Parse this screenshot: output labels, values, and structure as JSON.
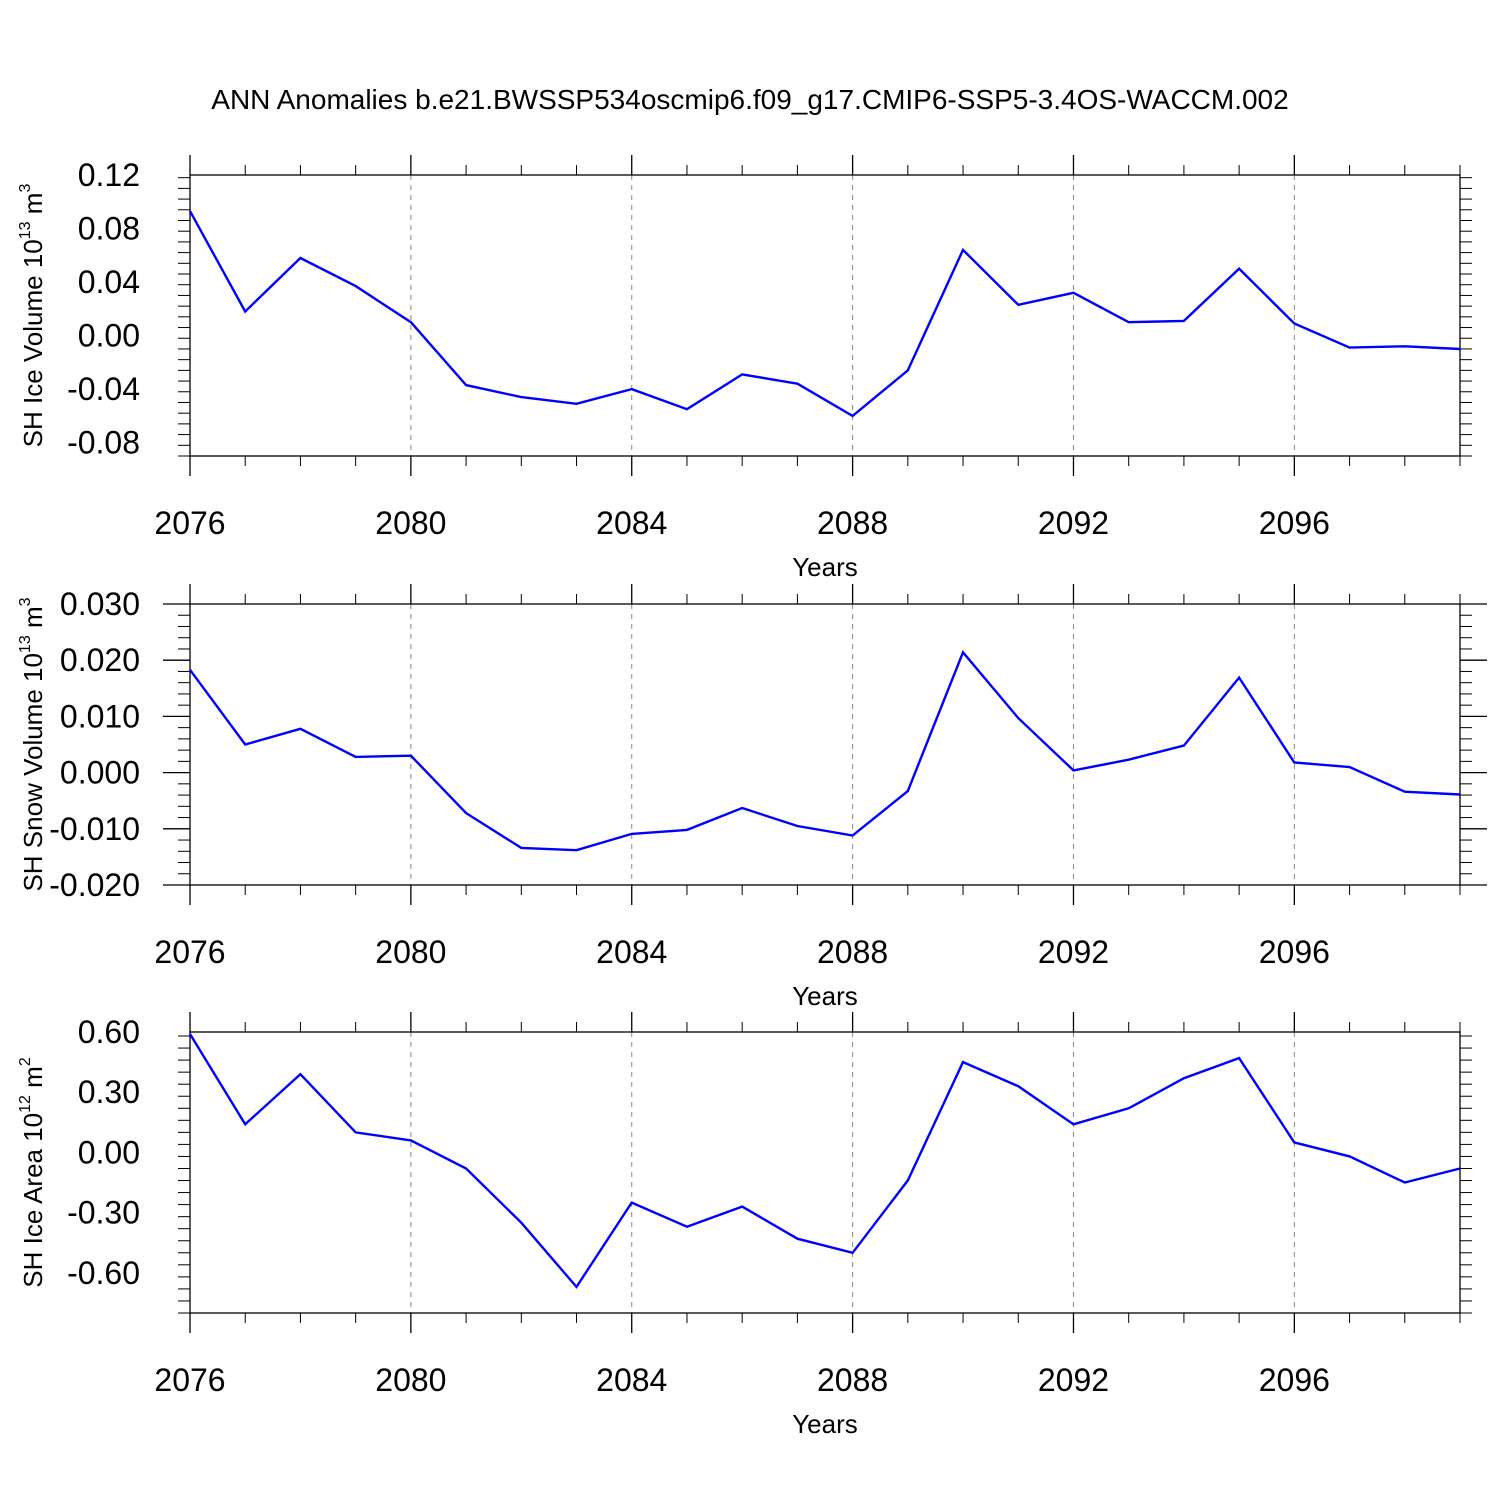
{
  "title": "ANN Anomalies b.e21.BWSSP534oscmip6.f09_g17.CMIP6-SSP5-3.4OS-WACCM.002",
  "style": {
    "line_color": "#0000ff",
    "grid": "vertical dashed at major x ticks"
  },
  "chart_data": [
    {
      "type": "line",
      "ylabel": "SH Ice Volume 10",
      "ylabel_exp": "13",
      "ylabel_unit": " m",
      "ylabel_unit_exp": "3",
      "xlabel": "Years",
      "xlim": [
        2076,
        2099
      ],
      "ylim": [
        -0.09,
        0.12
      ],
      "xticks": [
        2076,
        2080,
        2084,
        2088,
        2092,
        2096
      ],
      "xtick_labels": [
        "2076",
        "2080",
        "2084",
        "2088",
        "2092",
        "2096"
      ],
      "yticks": [
        0.12,
        0.08,
        0.04,
        0.0,
        -0.04,
        -0.08
      ],
      "ytick_labels": [
        "0.12",
        "0.08",
        "0.04",
        "0.00",
        "-0.04",
        "-0.08"
      ],
      "series": [
        {
          "x": [
            2076,
            2077,
            2078,
            2079,
            2080,
            2081,
            2082,
            2083,
            2084,
            2085,
            2086,
            2087,
            2088,
            2089,
            2090,
            2091,
            2092,
            2093,
            2094,
            2095,
            2096,
            2097,
            2098,
            2099
          ],
          "values": [
            0.093,
            0.018,
            0.058,
            0.037,
            0.01,
            -0.037,
            -0.046,
            -0.051,
            -0.04,
            -0.055,
            -0.029,
            -0.036,
            -0.06,
            -0.026,
            0.064,
            0.023,
            0.032,
            0.01,
            0.011,
            0.05,
            0.009,
            -0.009,
            -0.008,
            -0.01
          ]
        }
      ]
    },
    {
      "type": "line",
      "ylabel": "SH Snow Volume 10",
      "ylabel_exp": "13",
      "ylabel_unit": " m",
      "ylabel_unit_exp": "3",
      "xlabel": "Years",
      "xlim": [
        2076,
        2099
      ],
      "ylim": [
        -0.02,
        0.03
      ],
      "xticks": [
        2076,
        2080,
        2084,
        2088,
        2092,
        2096
      ],
      "xtick_labels": [
        "2076",
        "2080",
        "2084",
        "2088",
        "2092",
        "2096"
      ],
      "yticks": [
        0.03,
        0.02,
        0.01,
        0.0,
        -0.01,
        -0.02
      ],
      "ytick_labels": [
        "0.030",
        "0.020",
        "0.010",
        "0.000",
        "-0.010",
        "-0.020"
      ],
      "series": [
        {
          "x": [
            2076,
            2077,
            2078,
            2079,
            2080,
            2081,
            2082,
            2083,
            2084,
            2085,
            2086,
            2087,
            2088,
            2089,
            2090,
            2091,
            2092,
            2093,
            2094,
            2095,
            2096,
            2097,
            2098,
            2099
          ],
          "values": [
            0.0183,
            0.005,
            0.0078,
            0.0028,
            0.003,
            -0.0072,
            -0.0134,
            -0.0138,
            -0.0109,
            -0.0102,
            -0.0063,
            -0.0095,
            -0.0112,
            -0.0033,
            0.0214,
            0.0097,
            0.0004,
            0.0023,
            0.0048,
            0.0169,
            0.0018,
            0.001,
            -0.0034,
            -0.0039
          ]
        }
      ]
    },
    {
      "type": "line",
      "ylabel": "SH Ice Area 10",
      "ylabel_exp": "12",
      "ylabel_unit": " m",
      "ylabel_unit_exp": "2",
      "xlabel": "Years",
      "xlim": [
        2076,
        2099
      ],
      "ylim": [
        -0.8,
        0.6
      ],
      "xticks": [
        2076,
        2080,
        2084,
        2088,
        2092,
        2096
      ],
      "xtick_labels": [
        "2076",
        "2080",
        "2084",
        "2088",
        "2092",
        "2096"
      ],
      "yticks": [
        0.6,
        0.3,
        0.0,
        -0.3,
        -0.6
      ],
      "ytick_labels": [
        "0.60",
        "0.30",
        "0.00",
        "-0.30",
        "-0.60"
      ],
      "series": [
        {
          "x": [
            2076,
            2077,
            2078,
            2079,
            2080,
            2081,
            2082,
            2083,
            2084,
            2085,
            2086,
            2087,
            2088,
            2089,
            2090,
            2091,
            2092,
            2093,
            2094,
            2095,
            2096,
            2097,
            2098,
            2099
          ],
          "values": [
            0.59,
            0.14,
            0.39,
            0.1,
            0.06,
            -0.08,
            -0.35,
            -0.67,
            -0.25,
            -0.37,
            -0.27,
            -0.43,
            -0.5,
            -0.14,
            0.45,
            0.33,
            0.14,
            0.22,
            0.37,
            0.47,
            0.05,
            -0.02,
            -0.15,
            -0.08
          ]
        }
      ]
    }
  ]
}
